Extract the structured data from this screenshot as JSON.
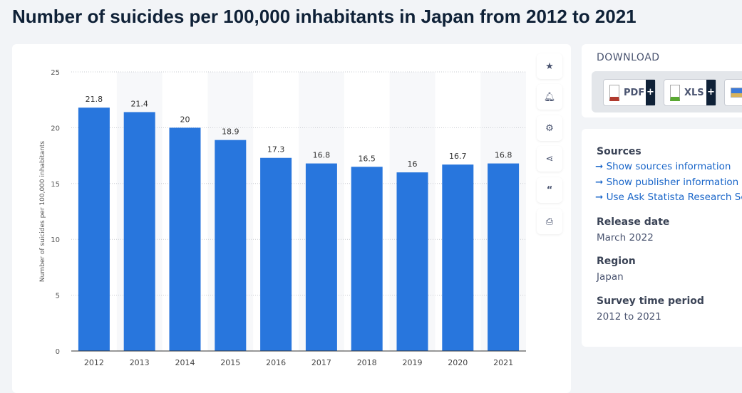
{
  "title": "Number of suicides per 100,000 inhabitants in Japan from 2012 to 2021",
  "toolbar": {
    "icons": [
      "star-icon",
      "bell-icon",
      "gear-icon",
      "share-icon",
      "quote-icon",
      "print-icon"
    ]
  },
  "download": {
    "title": "DOWNLOAD",
    "buttons": [
      {
        "label": "PDF",
        "plus": "+"
      },
      {
        "label": "XLS",
        "plus": "+"
      }
    ]
  },
  "info": {
    "sources_title": "Sources",
    "links": [
      "Show sources information",
      "Show publisher information",
      "Use Ask Statista Research Service"
    ],
    "release_title": "Release date",
    "release": "March 2022",
    "region_title": "Region",
    "region": "Japan",
    "period_title": "Survey time period",
    "period": "2012 to 2021"
  },
  "colors": {
    "bar": "#2876dd",
    "accent": "#1a66c9"
  },
  "chart_data": {
    "type": "bar",
    "categories": [
      "2012",
      "2013",
      "2014",
      "2015",
      "2016",
      "2017",
      "2018",
      "2019",
      "2020",
      "2021"
    ],
    "values": [
      21.8,
      21.4,
      20,
      18.9,
      17.3,
      16.8,
      16.5,
      16,
      16.7,
      16.8
    ],
    "ylabel": "Number of suicides per 100,000 inhabitants",
    "ylim": [
      0,
      25
    ],
    "yticks": [
      0,
      5,
      10,
      15,
      20,
      25
    ],
    "grid": true
  }
}
